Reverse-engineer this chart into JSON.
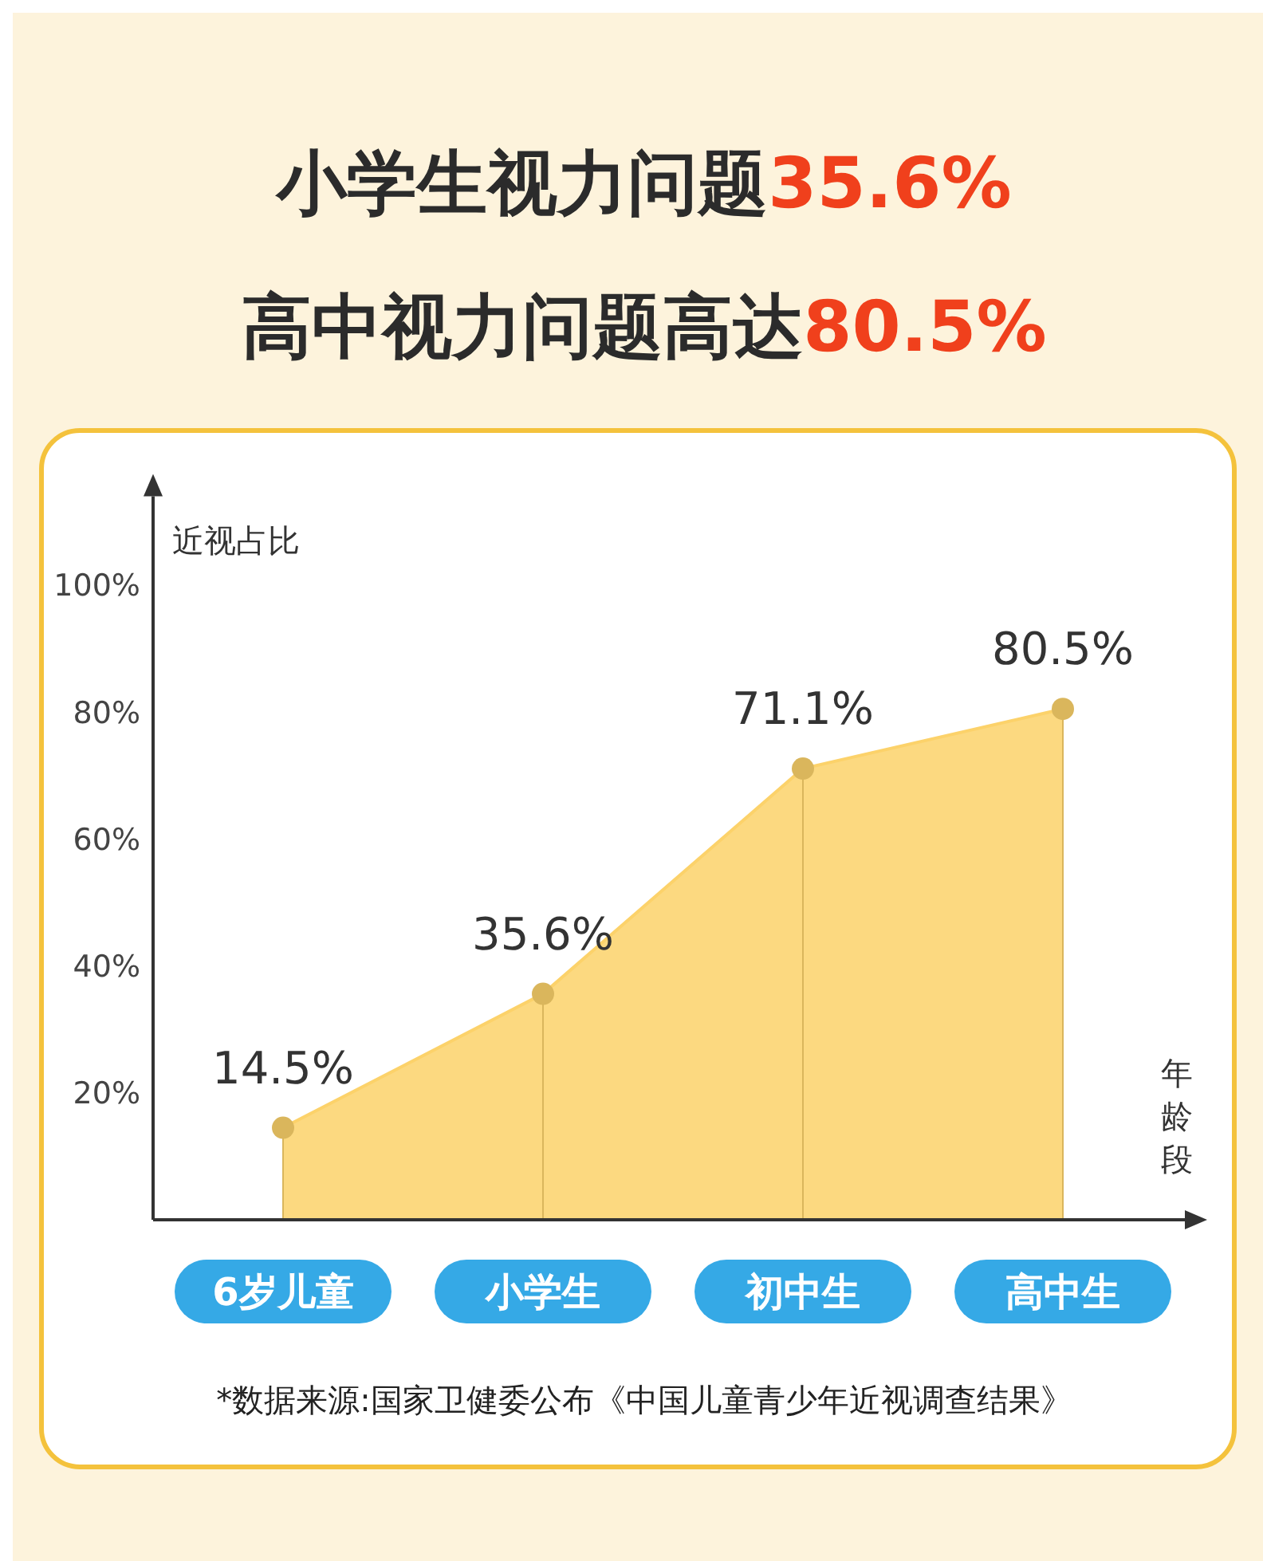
{
  "chart_data": {
    "type": "area",
    "title": "小学生视力问题35.6%",
    "subtitle": "高中视力问题高达80.5%",
    "ylabel": "近视占比",
    "xlabel": "年龄段",
    "categories": [
      "6岁儿童",
      "小学生",
      "初中生",
      "高中生"
    ],
    "series": [
      {
        "color": "#fcd26a",
        "values": [
          14.5,
          35.6,
          71.1,
          80.5
        ],
        "value_labels": [
          "14.5%",
          "35.6%",
          "71.1%",
          "80.5%"
        ]
      }
    ],
    "ylim": [
      0,
      114
    ],
    "yticks": [
      {
        "value": 20,
        "label": "20%"
      },
      {
        "value": 40,
        "label": "40%"
      },
      {
        "value": 60,
        "label": "60%"
      },
      {
        "value": 80,
        "label": "80%"
      },
      {
        "value": 100,
        "label": "100%"
      }
    ],
    "marker": "circle",
    "annotations": [
      "*数据来源:国家卫健委公布《中国儿童青少年近视调查结果》"
    ]
  }
}
